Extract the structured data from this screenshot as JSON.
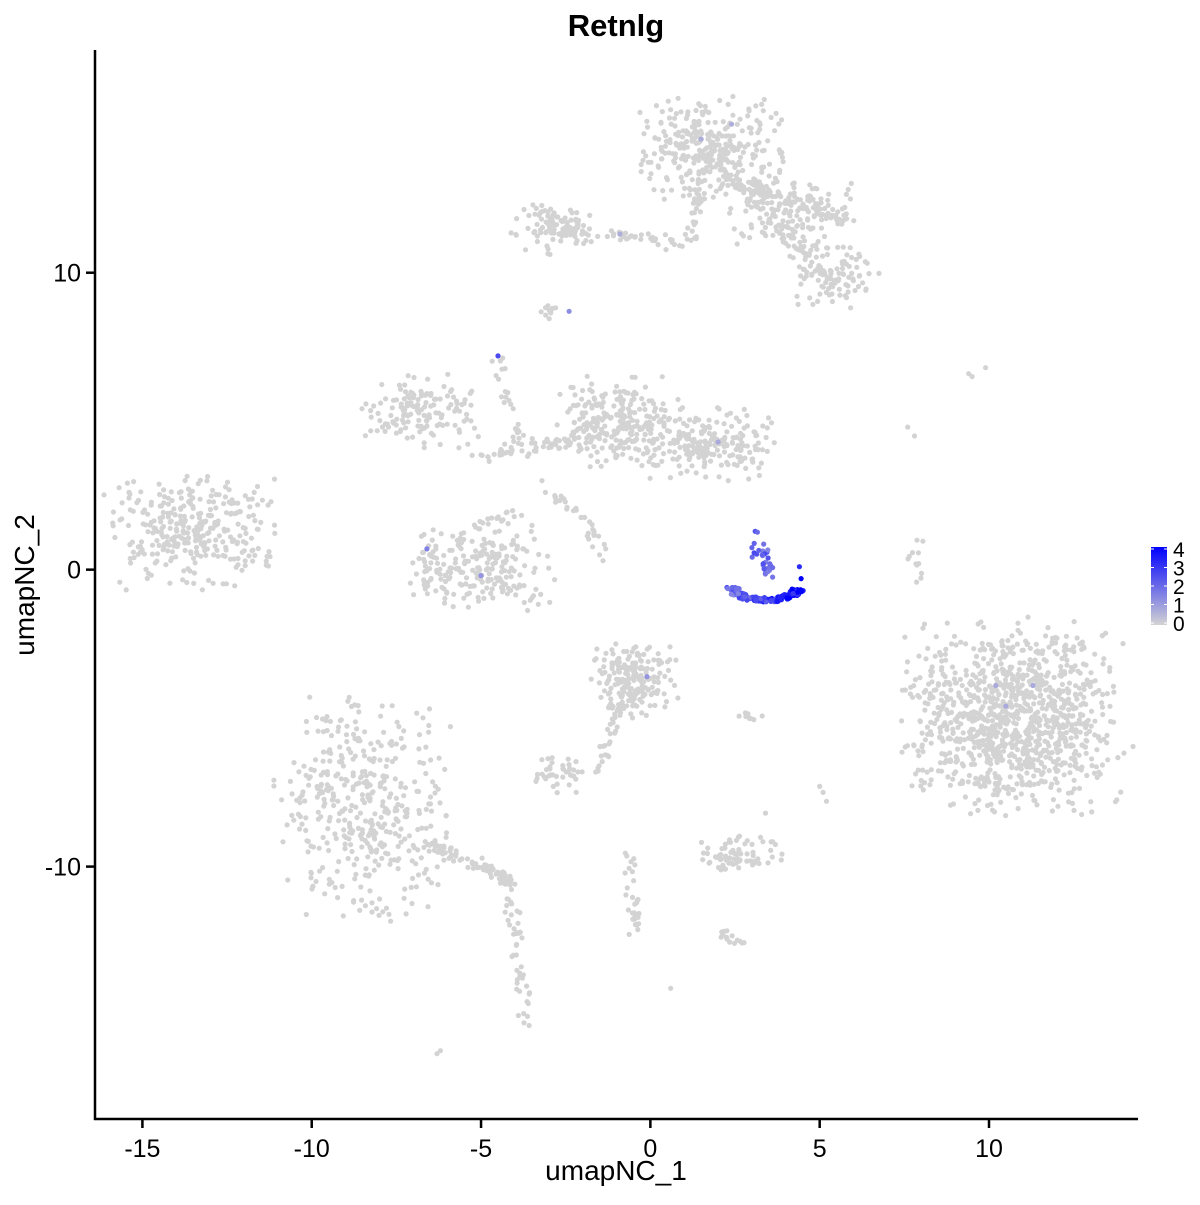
{
  "chart_data": {
    "type": "scatter",
    "title": "Retnlg",
    "xlabel": "umapNC_1",
    "ylabel": "umapNC_2",
    "xlim": [
      -16.4,
      14.4
    ],
    "ylim": [
      -18.5,
      17.5
    ],
    "x_ticks": [
      -15,
      -10,
      -5,
      0,
      5,
      10
    ],
    "x_tick_labels": [
      "-15",
      "-10",
      "-5",
      "0",
      "5",
      "10"
    ],
    "y_ticks": [
      -10,
      0,
      10
    ],
    "y_tick_labels": [
      "-10",
      "0",
      "10"
    ],
    "grid": false,
    "legend": {
      "position": "right",
      "type": "colorbar",
      "range": [
        0,
        4
      ],
      "ticks": [
        0,
        1,
        2,
        3,
        4
      ],
      "tick_labels": [
        "0",
        "1",
        "2",
        "3",
        "4"
      ],
      "low_color": "#d3d3d3",
      "high_color": "#0000ff"
    },
    "clusters": [
      {
        "cx": -13.5,
        "cy": 1.2,
        "sx": 1.1,
        "sy": 0.9,
        "n": 320
      },
      {
        "cx": -8.5,
        "cy": -8.0,
        "sx": 1.2,
        "sy": 1.8,
        "n": 420
      },
      {
        "cx": -5.0,
        "cy": 0.1,
        "sx": 1.0,
        "sy": 0.7,
        "n": 230
      },
      {
        "cx": -6.8,
        "cy": 5.4,
        "sx": 0.8,
        "sy": 0.6,
        "n": 140
      },
      {
        "cx": -1.0,
        "cy": 5.0,
        "sx": 0.9,
        "sy": 0.7,
        "n": 260
      },
      {
        "cx": 1.8,
        "cy": 4.2,
        "sx": 0.9,
        "sy": 0.6,
        "n": 200
      },
      {
        "cx": -2.8,
        "cy": 11.6,
        "sx": 0.6,
        "sy": 0.4,
        "n": 90
      },
      {
        "cx": 1.8,
        "cy": 14.2,
        "sx": 1.0,
        "sy": 0.8,
        "n": 320
      },
      {
        "cx": 4.2,
        "cy": 12.0,
        "sx": 0.9,
        "sy": 0.6,
        "n": 140
      },
      {
        "cx": 5.5,
        "cy": 9.8,
        "sx": 0.7,
        "sy": 0.5,
        "n": 90
      },
      {
        "cx": -0.5,
        "cy": -3.7,
        "sx": 0.6,
        "sy": 0.6,
        "n": 190
      },
      {
        "cx": 10.7,
        "cy": -5.0,
        "sx": 1.5,
        "sy": 1.5,
        "n": 1100
      },
      {
        "cx": 2.6,
        "cy": -9.6,
        "sx": 0.6,
        "sy": 0.3,
        "n": 70
      },
      {
        "cx": -2.7,
        "cy": -6.9,
        "sx": 0.35,
        "sy": 0.3,
        "n": 40
      }
    ],
    "arms": [
      {
        "x0": -6.6,
        "y0": -9.2,
        "x1": -4.2,
        "y1": -10.4,
        "n": 80
      },
      {
        "x0": -4.2,
        "y0": -10.4,
        "x1": -3.6,
        "y1": -15.4,
        "n": 55
      },
      {
        "x0": 2.1,
        "y0": 13.2,
        "x1": 5.8,
        "y1": 11.8,
        "n": 70
      },
      {
        "x0": 2.7,
        "y0": 12.8,
        "x1": 5.6,
        "y1": 9.6,
        "n": 60
      },
      {
        "x0": -3.0,
        "y0": 11.5,
        "x1": 1.2,
        "y1": 11.0,
        "n": 60
      },
      {
        "x0": 1.2,
        "y0": 11.0,
        "x1": 1.5,
        "y1": 13.5,
        "n": 35
      },
      {
        "x0": -5.2,
        "y0": 3.8,
        "x1": -1.2,
        "y1": 4.6,
        "n": 60
      },
      {
        "x0": -4.6,
        "y0": 7.1,
        "x1": -3.8,
        "y1": 4.0,
        "n": 25
      },
      {
        "x0": -2.8,
        "y0": 2.6,
        "x1": -1.3,
        "y1": 0.8,
        "n": 30
      },
      {
        "x0": -4.0,
        "y0": 2.0,
        "x1": -5.5,
        "y1": 1.2,
        "n": 20
      },
      {
        "x0": -0.9,
        "y0": -4.5,
        "x1": -1.5,
        "y1": -6.8,
        "n": 35
      },
      {
        "x0": -0.7,
        "y0": -9.5,
        "x1": -0.4,
        "y1": -12.4,
        "n": 30
      },
      {
        "x0": 2.0,
        "y0": -12.2,
        "x1": 2.8,
        "y1": -12.6,
        "n": 14
      },
      {
        "x0": 7.9,
        "y0": 0.9,
        "x1": 7.8,
        "y1": -0.3,
        "n": 12
      },
      {
        "x0": -2.9,
        "y0": 8.9,
        "x1": -3.1,
        "y1": 8.4,
        "n": 10
      },
      {
        "x0": 2.5,
        "y0": -5.0,
        "x1": 3.3,
        "y1": -4.9,
        "n": 10
      }
    ],
    "singletons": [
      [
        -11.6,
        2.8
      ],
      [
        -11.7,
        2.6
      ],
      [
        -11.1,
        1.5
      ],
      [
        -12.4,
        1.1
      ],
      [
        -7.5,
        4.6
      ],
      [
        -5.9,
        6.0
      ],
      [
        -5.5,
        5.0
      ],
      [
        -6.0,
        4.9
      ],
      [
        -3.2,
        3.0
      ],
      [
        -3.1,
        2.6
      ],
      [
        -1.5,
        0.5
      ],
      [
        -1.4,
        0.3
      ],
      [
        7.6,
        4.8
      ],
      [
        7.8,
        4.5
      ],
      [
        9.4,
        6.6
      ],
      [
        9.5,
        6.5
      ],
      [
        9.9,
        6.8
      ],
      [
        5.1,
        -7.5
      ],
      [
        5.2,
        -7.8
      ],
      [
        5.0,
        -7.3
      ],
      [
        3.4,
        -8.2
      ],
      [
        -6.3,
        -16.3
      ],
      [
        -6.2,
        -16.2
      ],
      [
        0.6,
        -14.1
      ],
      [
        -7.5,
        -7.7
      ],
      [
        2.3,
        3.0
      ]
    ],
    "expressing_cluster": {
      "arc_center": [
        3.3,
        -0.75
      ],
      "arc_r": [
        1.05,
        0.45
      ],
      "stem": {
        "x0": 3.0,
        "y0": 1.2,
        "x1": 3.6,
        "y1": -0.2
      },
      "n_arc": 150,
      "n_stem": 30,
      "max_value": 4.6
    },
    "scattered_expressing": [
      [
        -4.5,
        7.2,
        2.6
      ],
      [
        -6.6,
        0.7,
        1.6
      ],
      [
        -5.0,
        -0.2,
        1.2
      ],
      [
        -2.4,
        8.7,
        1.3
      ],
      [
        -0.1,
        -3.6,
        1.2
      ],
      [
        2.0,
        4.3,
        0.8
      ],
      [
        10.2,
        -3.9,
        0.8
      ],
      [
        11.3,
        -3.9,
        0.8
      ],
      [
        10.5,
        -4.6,
        0.8
      ],
      [
        1.5,
        14.5,
        0.7
      ],
      [
        2.4,
        15.0,
        0.7
      ],
      [
        -0.9,
        11.3,
        0.7
      ]
    ]
  }
}
